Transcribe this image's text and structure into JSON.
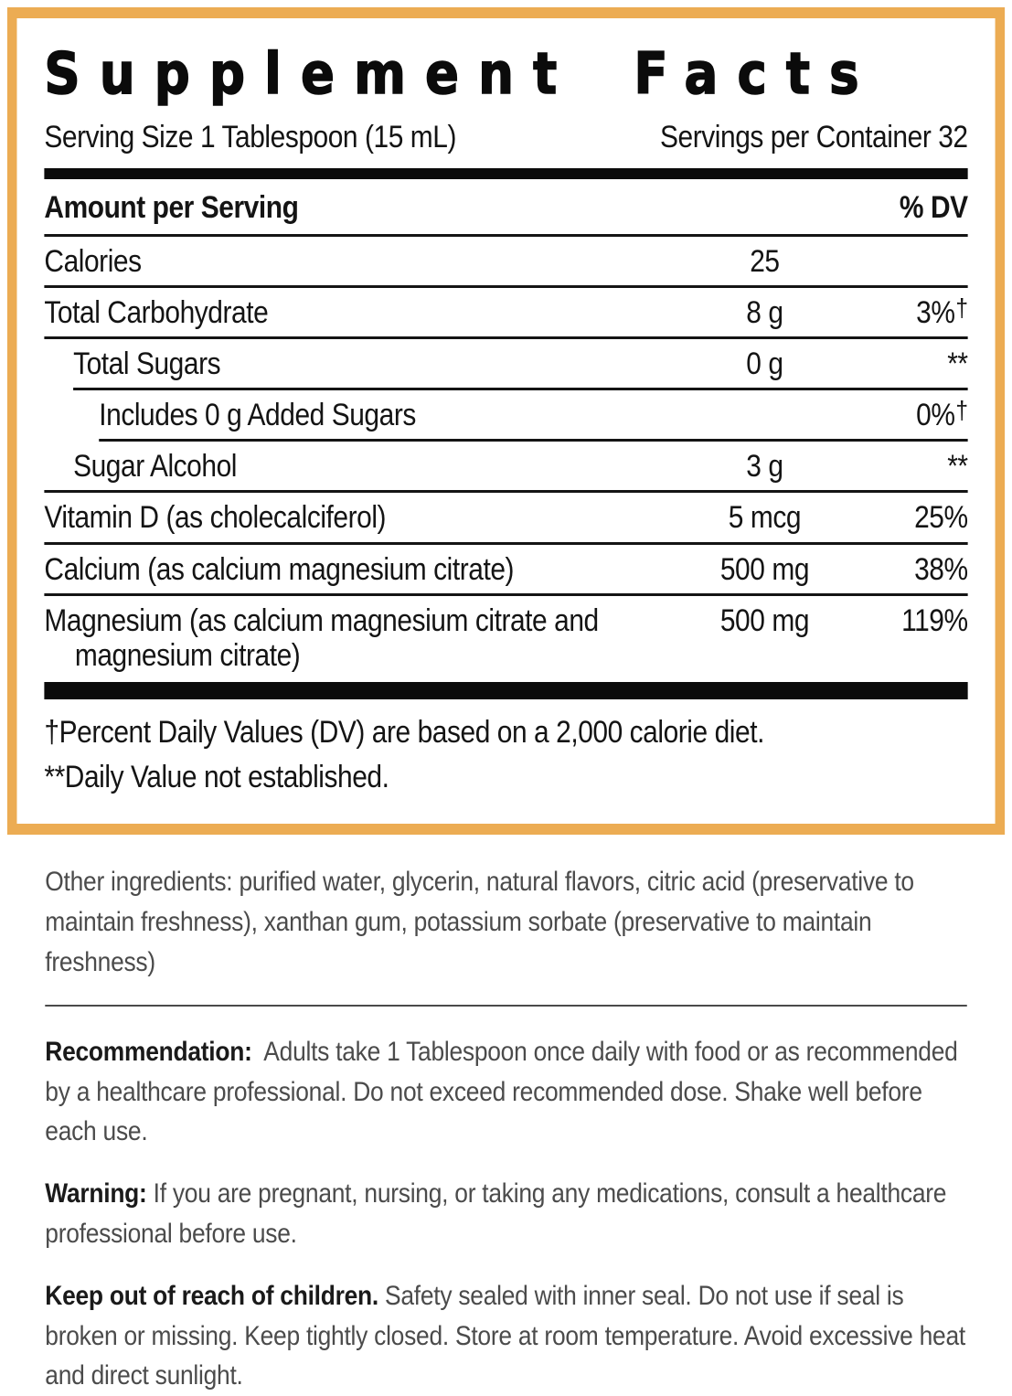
{
  "panel": {
    "title": "Supplement Facts",
    "serving_size": "Serving Size 1 Tablespoon (15 mL)",
    "servings_per_container": "Servings per Container 32",
    "column_headers": {
      "left": "Amount per Serving",
      "right": "% DV"
    },
    "rows": [
      {
        "label": "Calories",
        "amount": "25",
        "dv": "",
        "dv_note": "",
        "indent": 0,
        "divider_indent": 0
      },
      {
        "label": "Total Carbohydrate",
        "amount": "8 g",
        "dv": "3%",
        "dv_note": "†",
        "indent": 0,
        "divider_indent": 0
      },
      {
        "label": "Total Sugars",
        "amount": "0 g",
        "dv": "**",
        "dv_note": "",
        "indent": 1,
        "divider_indent": 1
      },
      {
        "label": "Includes 0 g Added Sugars",
        "amount": "",
        "dv": "0%",
        "dv_note": "†",
        "indent": 2,
        "divider_indent": 2
      },
      {
        "label": "Sugar Alcohol",
        "amount": "3 g",
        "dv": "**",
        "dv_note": "",
        "indent": 1,
        "divider_indent": 0
      },
      {
        "label": "Vitamin D (as cholecalciferol)",
        "amount": "5 mcg",
        "dv": "25%",
        "dv_note": "",
        "indent": 0,
        "divider_indent": 0
      },
      {
        "label": "Calcium (as calcium magnesium citrate)",
        "amount": "500 mg",
        "dv": "38%",
        "dv_note": "",
        "indent": 0,
        "divider_indent": 0
      },
      {
        "label": "Magnesium (as calcium magnesium citrate and magnesium citrate)",
        "amount": "500 mg",
        "dv": "119%",
        "dv_note": "",
        "indent": 0,
        "divider_indent": 0,
        "last": true
      }
    ],
    "footnotes": [
      "†Percent Daily Values (DV) are based on a 2,000 calorie diet.",
      "**Daily Value not established."
    ]
  },
  "notes": {
    "other_ingredients": "Other ingredients: purified water, glycerin, natural flavors, citric acid (preservative to maintain freshness), xanthan gum, potassium sorbate (preservative to maintain freshness)",
    "recommendation_label": "Recommendation:",
    "recommendation_text": "Adults take 1 Tablespoon once daily with food or as recommended by a healthcare professional. Do not exceed recommended dose. Shake well before each use.",
    "warning_label": "Warning:",
    "warning_text": "If you are pregnant, nursing, or taking any medications, consult a healthcare professional before use.",
    "children_label": "Keep out of reach of children.",
    "children_text": "Safety sealed with inner seal. Do not use if seal is broken or missing. Keep tightly closed. Store at room temperature. Avoid excessive heat and direct sunlight."
  },
  "colors": {
    "accent_border": "#ECAC53",
    "text_black": "#141414",
    "text_gray": "#4B4B4B"
  }
}
